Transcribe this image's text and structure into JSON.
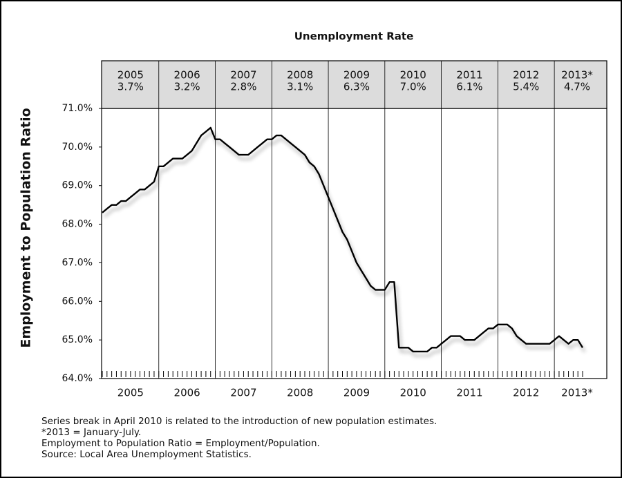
{
  "chart_data": {
    "type": "line",
    "title": "Unemployment Rate",
    "y_label": "Employment to Population Ratio",
    "rate_panel": {
      "years": [
        "2005",
        "2006",
        "2007",
        "2008",
        "2009",
        "2010",
        "2011",
        "2012",
        "2013*"
      ],
      "rates": [
        "3.7%",
        "3.2%",
        "2.8%",
        "3.1%",
        "6.3%",
        "7.0%",
        "6.1%",
        "5.4%",
        "4.7%"
      ]
    },
    "categories": [
      null,
      null,
      null,
      null,
      null,
      null,
      "2005",
      null,
      null,
      null,
      null,
      null,
      null,
      null,
      null,
      null,
      null,
      null,
      "2006",
      null,
      null,
      null,
      null,
      null,
      null,
      null,
      null,
      null,
      null,
      null,
      "2007",
      null,
      null,
      null,
      null,
      null,
      null,
      null,
      null,
      null,
      null,
      null,
      "2008",
      null,
      null,
      null,
      null,
      null,
      null,
      null,
      null,
      null,
      null,
      null,
      "2009",
      null,
      null,
      null,
      null,
      null,
      null,
      null,
      null,
      null,
      null,
      null,
      "2010",
      null,
      null,
      null,
      null,
      null,
      null,
      null,
      null,
      null,
      null,
      null,
      "2011",
      null,
      null,
      null,
      null,
      null,
      null,
      null,
      null,
      null,
      null,
      null,
      "2012",
      null,
      null,
      null,
      null,
      null,
      null,
      null,
      null,
      null,
      null,
      null,
      "2013*"
    ],
    "values": [
      68.3,
      68.4,
      68.5,
      68.5,
      68.6,
      68.6,
      68.7,
      68.8,
      68.9,
      68.9,
      69.0,
      69.1,
      69.5,
      69.5,
      69.6,
      69.7,
      69.7,
      69.7,
      69.8,
      69.9,
      70.1,
      70.3,
      70.4,
      70.5,
      70.2,
      70.2,
      70.1,
      70.0,
      69.9,
      69.8,
      69.8,
      69.8,
      69.9,
      70.0,
      70.1,
      70.2,
      70.2,
      70.3,
      70.3,
      70.2,
      70.1,
      70.0,
      69.9,
      69.8,
      69.6,
      69.5,
      69.3,
      69.0,
      68.7,
      68.4,
      68.1,
      67.8,
      67.6,
      67.3,
      67.0,
      66.8,
      66.6,
      66.4,
      66.3,
      66.3,
      66.3,
      66.5,
      66.5,
      64.8,
      64.8,
      64.8,
      64.7,
      64.7,
      64.7,
      64.7,
      64.8,
      64.8,
      64.9,
      65.0,
      65.1,
      65.1,
      65.1,
      65.0,
      65.0,
      65.0,
      65.1,
      65.2,
      65.3,
      65.3,
      65.4,
      65.4,
      65.4,
      65.3,
      65.1,
      65.0,
      64.9,
      64.9,
      64.9,
      64.9,
      64.9,
      64.9,
      65.0,
      65.1,
      65.0,
      64.9,
      65.0,
      65.0,
      64.8
    ],
    "color": "#000000",
    "ylim": [
      64,
      71
    ],
    "yticks": [
      {
        "value": 64,
        "label": "64.0%"
      },
      {
        "value": 65,
        "label": "65.0%"
      },
      {
        "value": 66,
        "label": "66.0%"
      },
      {
        "value": 67,
        "label": "67.0%"
      },
      {
        "value": 68,
        "label": "68.0%"
      },
      {
        "value": 69,
        "label": "69.0%"
      },
      {
        "value": 70,
        "label": "70.0%"
      },
      {
        "value": 71,
        "label": "71.0%"
      }
    ],
    "notes": [
      "Series break in April 2010 is related to the introduction of new population estimates.",
      "*2013 = January-July.",
      "Employment to Population Ratio = Employment/Population.",
      "Source: Local Area Unemployment Statistics."
    ]
  }
}
